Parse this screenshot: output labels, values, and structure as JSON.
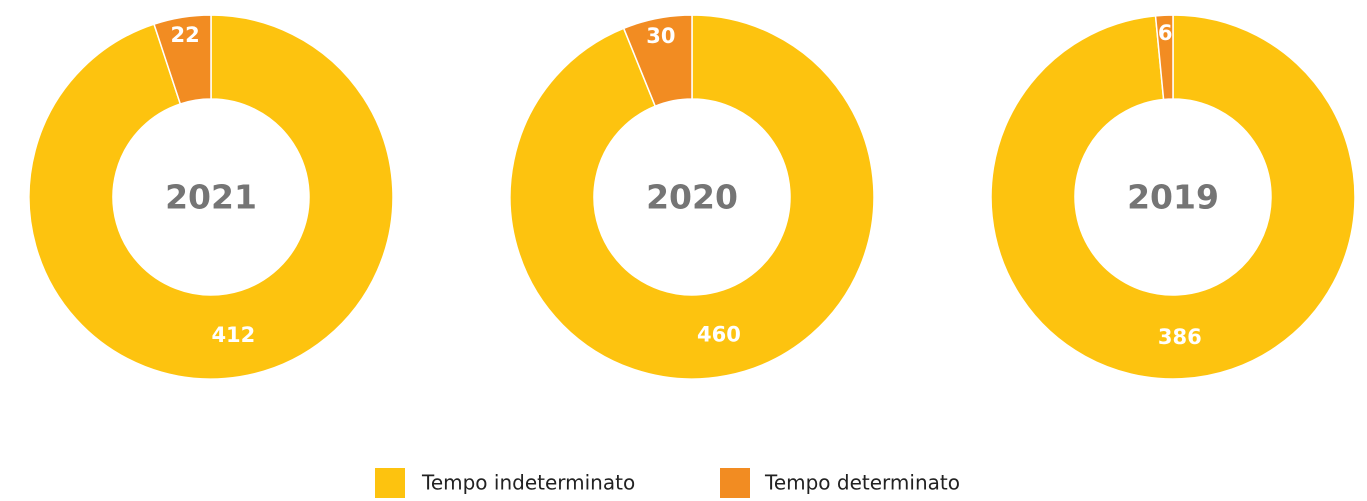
{
  "chart_data": [
    {
      "type": "pie",
      "donut": true,
      "title": "2021",
      "categories": [
        "Tempo indeterminato",
        "Tempo determinato"
      ],
      "values": [
        412,
        22
      ],
      "colors": [
        "#fdc30f",
        "#f28c22"
      ]
    },
    {
      "type": "pie",
      "donut": true,
      "title": "2020",
      "categories": [
        "Tempo indeterminato",
        "Tempo determinato"
      ],
      "values": [
        460,
        30
      ],
      "colors": [
        "#fdc30f",
        "#f28c22"
      ]
    },
    {
      "type": "pie",
      "donut": true,
      "title": "2019",
      "categories": [
        "Tempo indeterminato",
        "Tempo determinato"
      ],
      "values": [
        386,
        6
      ],
      "colors": [
        "#fdc30f",
        "#f28c22"
      ]
    }
  ]
}
